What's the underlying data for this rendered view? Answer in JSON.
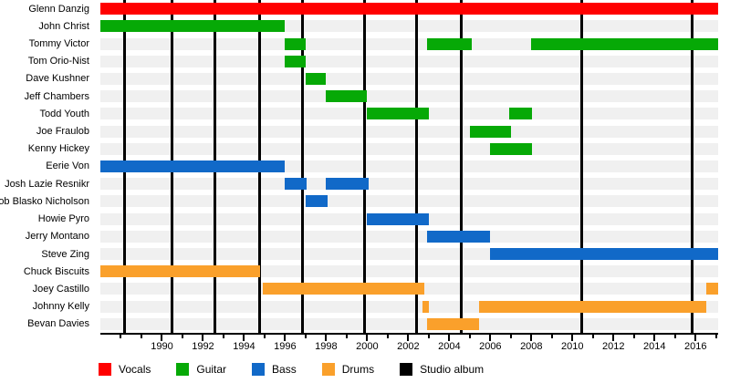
{
  "chart_data": {
    "type": "bar",
    "subtype": "band-membership-timeline",
    "title": "",
    "x_domain": [
      1987.0,
      2017.1
    ],
    "grid": false,
    "legend_position": "bottom",
    "colors": {
      "vocals": "#FF0000",
      "guitar": "#06A906",
      "bass": "#1169C8",
      "drums": "#FAA02B",
      "studio_album": "#000000",
      "row_track": "#F0F0F0",
      "background": "#FFFFFF"
    },
    "members": [
      {
        "name": "Glenn Danzig",
        "role": "vocals",
        "segments": [
          [
            1987.0,
            2017.1
          ]
        ]
      },
      {
        "name": "John Christ",
        "role": "guitar",
        "segments": [
          [
            1987.0,
            1996.0
          ]
        ]
      },
      {
        "name": "Tommy Victor",
        "role": "guitar",
        "segments": [
          [
            1996.0,
            1997.0
          ],
          [
            2002.9,
            2005.1
          ],
          [
            2008.0,
            2017.1
          ]
        ]
      },
      {
        "name": "Tom Orio-Nist",
        "role": "guitar",
        "segments": [
          [
            1996.0,
            1997.0
          ]
        ]
      },
      {
        "name": "Dave Kushner",
        "role": "guitar",
        "segments": [
          [
            1997.0,
            1998.0
          ]
        ]
      },
      {
        "name": "Jeff Chambers",
        "role": "guitar",
        "segments": [
          [
            1998.0,
            2000.0
          ]
        ]
      },
      {
        "name": "Todd Youth",
        "role": "guitar",
        "segments": [
          [
            2000.0,
            2003.0
          ],
          [
            2006.9,
            2008.05
          ]
        ]
      },
      {
        "name": "Joe Fraulob",
        "role": "guitar",
        "segments": [
          [
            2005.0,
            2007.0
          ]
        ]
      },
      {
        "name": "Kenny Hickey",
        "role": "guitar",
        "segments": [
          [
            2006.0,
            2008.05
          ]
        ]
      },
      {
        "name": "Eerie Von",
        "role": "bass",
        "segments": [
          [
            1987.0,
            1996.0
          ]
        ]
      },
      {
        "name": "Josh Lazie Resnikr",
        "role": "bass",
        "segments": [
          [
            1996.0,
            1997.05
          ],
          [
            1998.0,
            2000.05
          ]
        ]
      },
      {
        "name": "Rob Blasko Nicholson",
        "role": "bass",
        "segments": [
          [
            1997.0,
            1998.05
          ]
        ]
      },
      {
        "name": "Howie Pyro",
        "role": "bass",
        "segments": [
          [
            2000.0,
            2003.0
          ]
        ]
      },
      {
        "name": "Jerry Montano",
        "role": "bass",
        "segments": [
          [
            2002.9,
            2006.0
          ]
        ]
      },
      {
        "name": "Steve Zing",
        "role": "bass",
        "segments": [
          [
            2006.0,
            2017.1
          ]
        ]
      },
      {
        "name": "Chuck Biscuits",
        "role": "drums",
        "segments": [
          [
            1987.0,
            1994.8
          ]
        ]
      },
      {
        "name": "Joey Castillo",
        "role": "drums",
        "segments": [
          [
            1994.9,
            2002.8
          ],
          [
            2016.5,
            2017.1
          ]
        ]
      },
      {
        "name": "Johnny Kelly",
        "role": "drums",
        "segments": [
          [
            2002.7,
            2003.0
          ],
          [
            2005.45,
            2016.5
          ]
        ]
      },
      {
        "name": "Bevan Davies",
        "role": "drums",
        "segments": [
          [
            2002.9,
            2005.45
          ]
        ]
      }
    ],
    "album_line_years": [
      1988.2,
      1990.5,
      1992.6,
      1994.75,
      1996.85,
      1999.85,
      2002.4,
      2004.6,
      2010.45,
      2015.85
    ],
    "axis": {
      "tick_year_min": 1988,
      "tick_year_max": 2017,
      "label_years": [
        1990,
        1992,
        1994,
        1996,
        1998,
        2000,
        2002,
        2004,
        2006,
        2008,
        2010,
        2012,
        2014,
        2016
      ]
    },
    "legend": [
      {
        "label": "Vocals",
        "color_key": "vocals"
      },
      {
        "label": "Guitar",
        "color_key": "guitar"
      },
      {
        "label": "Bass",
        "color_key": "bass"
      },
      {
        "label": "Drums",
        "color_key": "drums"
      },
      {
        "label": "Studio album",
        "color_key": "studio_album"
      }
    ]
  }
}
